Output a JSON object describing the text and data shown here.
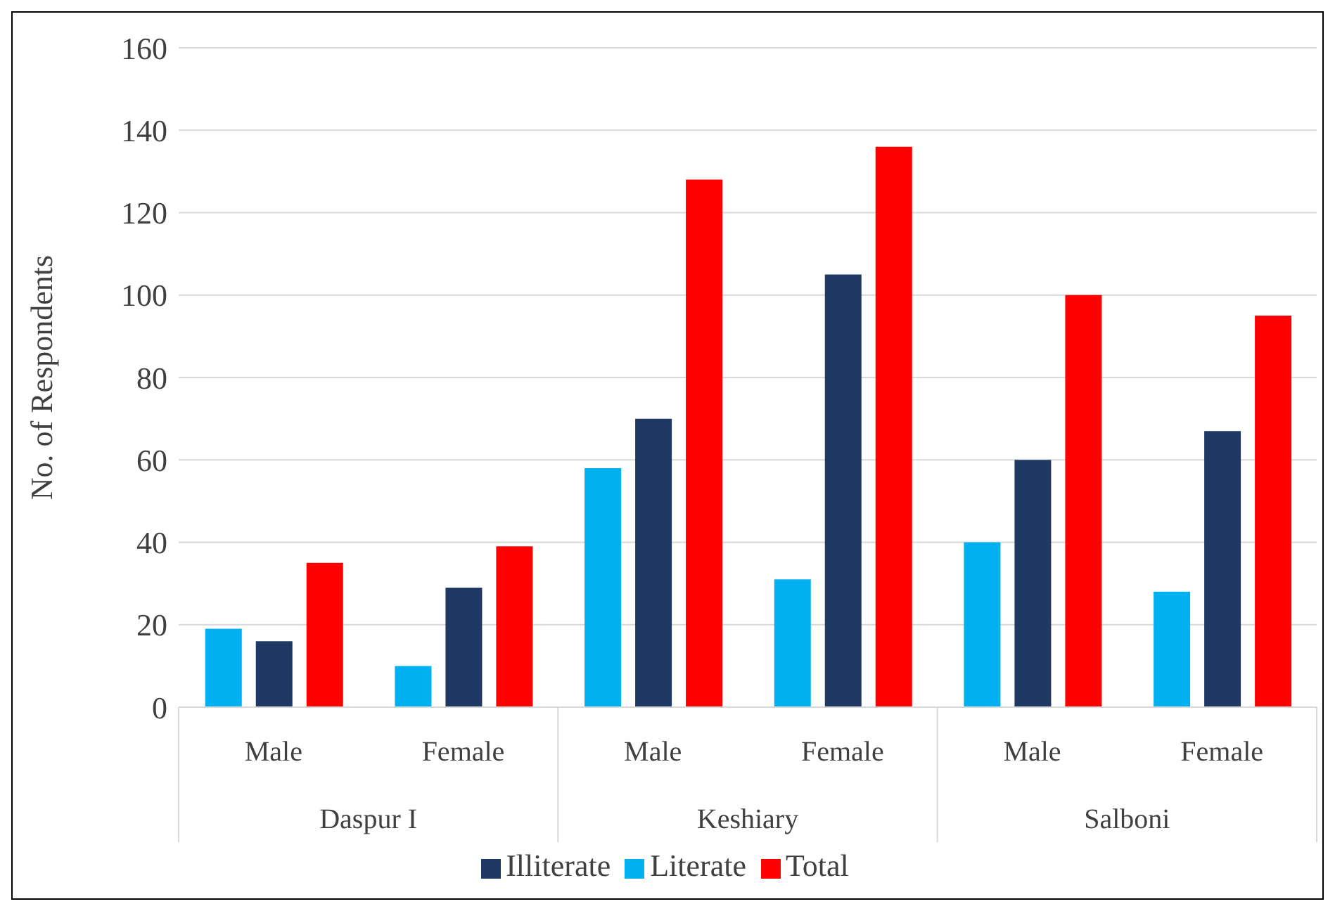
{
  "chart_data": {
    "type": "bar",
    "ylabel": "No. of Respondents",
    "categories": [
      "Male",
      "Female",
      "Male",
      "Female",
      "Male",
      "Female"
    ],
    "annotations": [
      "Daspur I",
      "Keshiary",
      "Salboni"
    ],
    "series": [
      {
        "name": "Literate",
        "color": "#00b0f0",
        "values": [
          19,
          10,
          58,
          31,
          40,
          28
        ]
      },
      {
        "name": "Illiterate",
        "color": "#203864",
        "values": [
          16,
          29,
          70,
          105,
          60,
          67
        ]
      },
      {
        "name": "Total",
        "color": "#ff0000",
        "values": [
          35,
          39,
          128,
          136,
          100,
          95
        ]
      }
    ],
    "ylim": [
      0,
      160
    ],
    "yticks": [
      0,
      20,
      40,
      60,
      80,
      100,
      120,
      140,
      160
    ],
    "grid": "y",
    "legend": "bottom"
  }
}
